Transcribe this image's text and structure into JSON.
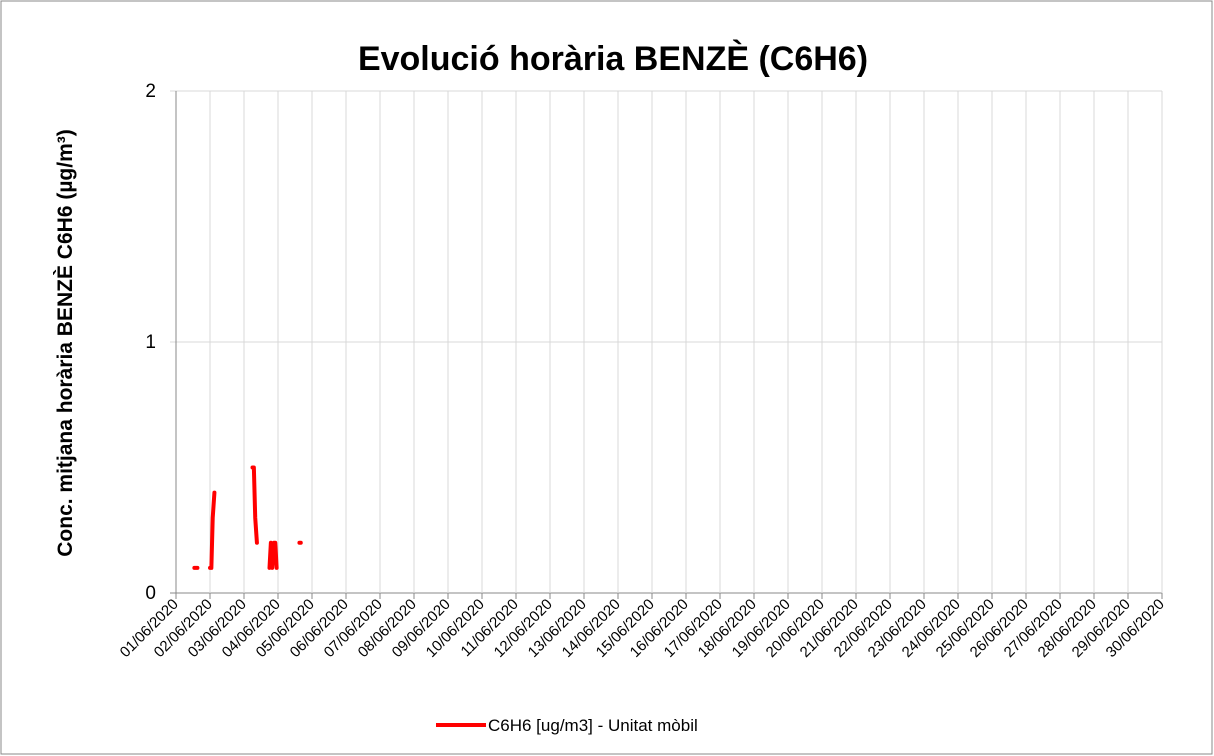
{
  "chart_data": {
    "type": "line",
    "title": "Evolució horària BENZÈ (C6H6)",
    "y_label": "Conc. mitjana horària BENZÈ C6H6 (µg/m³)",
    "x": [
      0.54,
      0.58,
      0.63,
      0.8,
      1.0,
      1.04,
      1.08,
      1.13,
      2.0,
      2.25,
      2.29,
      2.33,
      2.38,
      2.6,
      2.75,
      2.79,
      2.83,
      2.88,
      2.92,
      2.96,
      3.3,
      3.63,
      3.67
    ],
    "series": [
      {
        "name": "C6H6 [ug/m3] - Unitat mòbil",
        "color": "#ff0000",
        "values": [
          0.1,
          0.1,
          0.1,
          null,
          0.1,
          0.1,
          0.3,
          0.4,
          null,
          0.5,
          0.5,
          0.3,
          0.2,
          null,
          0.1,
          0.2,
          0.1,
          0.2,
          0.2,
          0.1,
          null,
          0.2,
          0.2
        ]
      }
    ],
    "xlim": [
      0,
      29
    ],
    "xticks": [
      {
        "value": 0,
        "label": "01/06/2020"
      },
      {
        "value": 1,
        "label": "02/06/2020"
      },
      {
        "value": 2,
        "label": "03/06/2020"
      },
      {
        "value": 3,
        "label": "04/06/2020"
      },
      {
        "value": 4,
        "label": "05/06/2020"
      },
      {
        "value": 5,
        "label": "06/06/2020"
      },
      {
        "value": 6,
        "label": "07/06/2020"
      },
      {
        "value": 7,
        "label": "08/06/2020"
      },
      {
        "value": 8,
        "label": "09/06/2020"
      },
      {
        "value": 9,
        "label": "10/06/2020"
      },
      {
        "value": 10,
        "label": "11/06/2020"
      },
      {
        "value": 11,
        "label": "12/06/2020"
      },
      {
        "value": 12,
        "label": "13/06/2020"
      },
      {
        "value": 13,
        "label": "14/06/2020"
      },
      {
        "value": 14,
        "label": "15/06/2020"
      },
      {
        "value": 15,
        "label": "16/06/2020"
      },
      {
        "value": 16,
        "label": "17/06/2020"
      },
      {
        "value": 17,
        "label": "18/06/2020"
      },
      {
        "value": 18,
        "label": "19/06/2020"
      },
      {
        "value": 19,
        "label": "20/06/2020"
      },
      {
        "value": 20,
        "label": "21/06/2020"
      },
      {
        "value": 21,
        "label": "22/06/2020"
      },
      {
        "value": 22,
        "label": "23/06/2020"
      },
      {
        "value": 23,
        "label": "24/06/2020"
      },
      {
        "value": 24,
        "label": "25/06/2020"
      },
      {
        "value": 25,
        "label": "26/06/2020"
      },
      {
        "value": 26,
        "label": "27/06/2020"
      },
      {
        "value": 27,
        "label": "28/06/2020"
      },
      {
        "value": 28,
        "label": "29/06/2020"
      },
      {
        "value": 29,
        "label": "30/06/2020"
      }
    ],
    "ylim": [
      0,
      2
    ],
    "yticks": [
      0,
      1,
      2
    ],
    "grid": true,
    "legend": "bottom"
  }
}
